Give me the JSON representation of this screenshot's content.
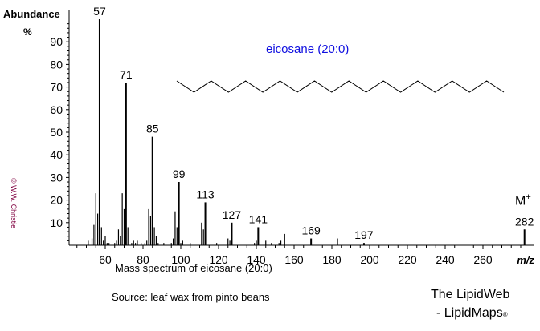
{
  "chart_data": {
    "type": "bar",
    "title": "eicosane  (20:0)",
    "ylabel": "Abundance",
    "yunit": "%",
    "xlabel": "m/z",
    "xlim": [
      40,
      284
    ],
    "ylim": [
      0,
      100
    ],
    "xticks": [
      60,
      80,
      100,
      120,
      140,
      160,
      180,
      200,
      220,
      240,
      260
    ],
    "yticks": [
      10,
      20,
      30,
      40,
      50,
      60,
      70,
      80,
      90
    ],
    "grid": false,
    "peaks": [
      {
        "mz": 51,
        "y": 2
      },
      {
        "mz": 53,
        "y": 3
      },
      {
        "mz": 54,
        "y": 9
      },
      {
        "mz": 55,
        "y": 23
      },
      {
        "mz": 56,
        "y": 14
      },
      {
        "mz": 57,
        "y": 100,
        "label": "57"
      },
      {
        "mz": 58,
        "y": 8
      },
      {
        "mz": 59,
        "y": 2
      },
      {
        "mz": 60,
        "y": 4
      },
      {
        "mz": 61,
        "y": 1
      },
      {
        "mz": 62,
        "y": 1
      },
      {
        "mz": 65,
        "y": 1
      },
      {
        "mz": 66,
        "y": 2
      },
      {
        "mz": 67,
        "y": 7
      },
      {
        "mz": 68,
        "y": 4
      },
      {
        "mz": 69,
        "y": 23
      },
      {
        "mz": 70,
        "y": 16
      },
      {
        "mz": 71,
        "y": 72,
        "label": "71"
      },
      {
        "mz": 72,
        "y": 8
      },
      {
        "mz": 74,
        "y": 1
      },
      {
        "mz": 75,
        "y": 2
      },
      {
        "mz": 76,
        "y": 1
      },
      {
        "mz": 77,
        "y": 2
      },
      {
        "mz": 79,
        "y": 1
      },
      {
        "mz": 81,
        "y": 1
      },
      {
        "mz": 82,
        "y": 2
      },
      {
        "mz": 83,
        "y": 16
      },
      {
        "mz": 84,
        "y": 13
      },
      {
        "mz": 85,
        "y": 48,
        "label": "85"
      },
      {
        "mz": 86,
        "y": 8
      },
      {
        "mz": 87,
        "y": 4
      },
      {
        "mz": 88,
        "y": 1
      },
      {
        "mz": 91,
        "y": 1
      },
      {
        "mz": 95,
        "y": 1
      },
      {
        "mz": 96,
        "y": 3
      },
      {
        "mz": 97,
        "y": 15
      },
      {
        "mz": 98,
        "y": 8
      },
      {
        "mz": 99,
        "y": 28,
        "label": "99"
      },
      {
        "mz": 100,
        "y": 1
      },
      {
        "mz": 101,
        "y": 2
      },
      {
        "mz": 105,
        "y": 1
      },
      {
        "mz": 111,
        "y": 10
      },
      {
        "mz": 112,
        "y": 7
      },
      {
        "mz": 113,
        "y": 19,
        "label": "113"
      },
      {
        "mz": 119,
        "y": 1
      },
      {
        "mz": 125,
        "y": 3
      },
      {
        "mz": 126,
        "y": 2
      },
      {
        "mz": 127,
        "y": 10,
        "label": "127"
      },
      {
        "mz": 139,
        "y": 1
      },
      {
        "mz": 140,
        "y": 2
      },
      {
        "mz": 141,
        "y": 8,
        "label": "141"
      },
      {
        "mz": 145,
        "y": 2
      },
      {
        "mz": 148,
        "y": 1
      },
      {
        "mz": 152,
        "y": 1
      },
      {
        "mz": 153,
        "y": 2
      },
      {
        "mz": 155,
        "y": 5
      },
      {
        "mz": 169,
        "y": 3,
        "label": "169"
      },
      {
        "mz": 183,
        "y": 3
      },
      {
        "mz": 197,
        "y": 1,
        "label": "197"
      },
      {
        "mz": 282,
        "y": 7,
        "label": "282"
      }
    ],
    "molecular_ion_label": "M",
    "molecular_ion_charge": "+"
  },
  "caption": "Mass spectrum of eicosane (20:0)",
  "source": "Source: leaf wax from pinto beans",
  "brand_line1": "The LipidWeb",
  "brand_line2": "- LipidMaps",
  "brand_mark": "®",
  "copyright": "© W.W. Christie",
  "colors": {
    "title": "#1010e0",
    "copyright": "#800040",
    "axis": "#000000"
  }
}
